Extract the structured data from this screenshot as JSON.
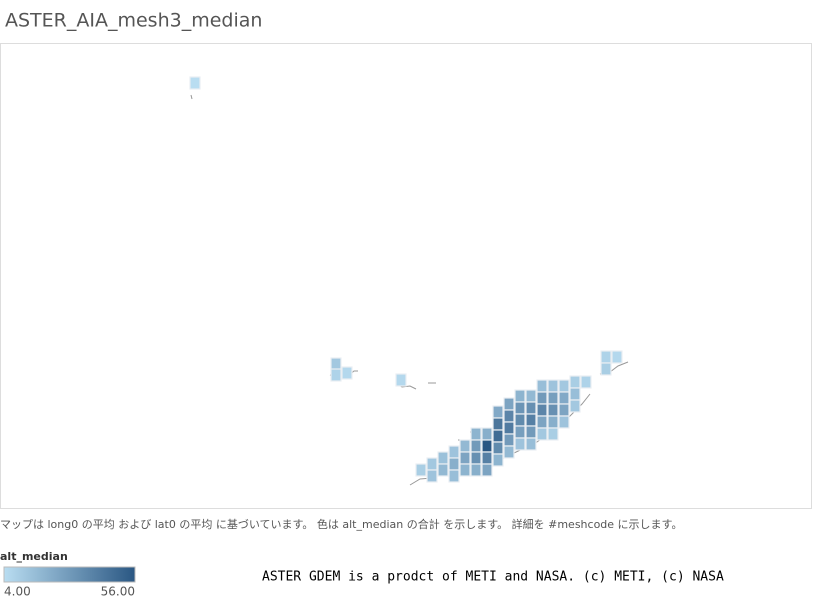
{
  "header": {
    "title": "ASTER_AIA_mesh3_median"
  },
  "map": {
    "cells": [
      10,
      12,
      14,
      15,
      18,
      14,
      22,
      16,
      18,
      26,
      20,
      20,
      30,
      34,
      22,
      22,
      56,
      40,
      26,
      24,
      44,
      48,
      36,
      20,
      26,
      38,
      42,
      30,
      18,
      20,
      32,
      36,
      28,
      14,
      18,
      34,
      40,
      30,
      16,
      16,
      30,
      38,
      26,
      12,
      14,
      28,
      34,
      22,
      10,
      12,
      24,
      26,
      14,
      10,
      16,
      12,
      8,
      12,
      8,
      6,
      6,
      8,
      10,
      6,
      4
    ],
    "color_low": "#b9ddf1",
    "color_high": "#2a5783"
  },
  "footnote": "マップは long0 の平均 および lat0 の平均 に基づいています。 色は alt_median の合計 を示します。 詳細を #meshcode に示します。",
  "legend": {
    "title": "alt_median",
    "min": {
      "value": 4,
      "label": "4.00"
    },
    "max": {
      "value": 56,
      "label": "56.00"
    }
  },
  "credit": "ASTER GDEM is a prodct of METI and NASA. (c) METI, (c) NASA"
}
